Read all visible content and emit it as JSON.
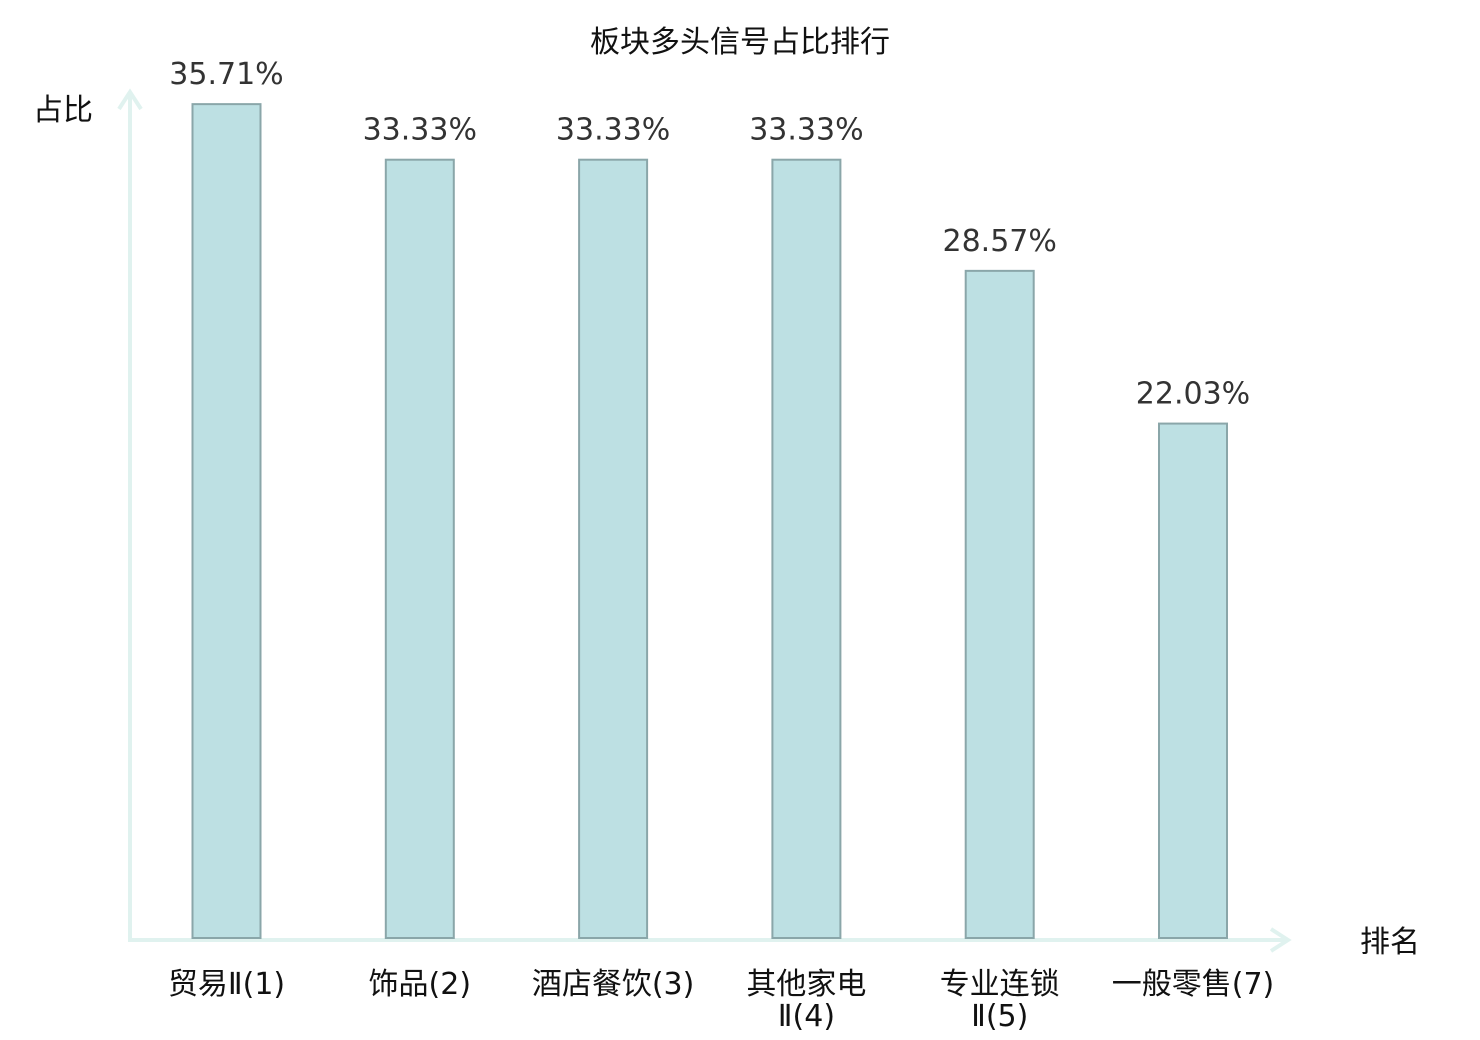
{
  "chart_data": {
    "type": "bar",
    "title": "板块多头信号占比排行",
    "xlabel": "排名",
    "ylabel": "占比",
    "categories": [
      [
        "贸易Ⅱ(1)"
      ],
      [
        "饰品(2)"
      ],
      [
        "酒店餐饮(3)"
      ],
      [
        "其他家电",
        "Ⅱ(4)"
      ],
      [
        "专业连锁",
        "Ⅱ(5)"
      ],
      [
        "一般零售(7)"
      ]
    ],
    "values": [
      35.71,
      33.33,
      33.33,
      33.33,
      28.57,
      22.03
    ],
    "value_labels": [
      "35.71%",
      "33.33%",
      "33.33%",
      "33.33%",
      "28.57%",
      "22.03%"
    ],
    "highlight_index": 5,
    "ylim": [
      0,
      37.6
    ],
    "grid": false,
    "legend": "none",
    "colors": {
      "bar_fill": "#bde0e3",
      "bar_stroke": "#8aa6a9",
      "axis": "#e0f2ef",
      "text": "#111111",
      "value_text": "#333333",
      "highlight_text": "#dd1111"
    }
  }
}
